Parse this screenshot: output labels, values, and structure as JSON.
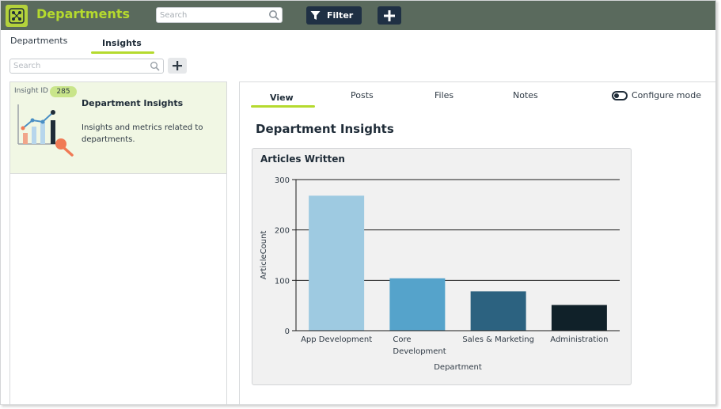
{
  "app": {
    "title": "Departments",
    "logo_icon": "network-grid-icon",
    "brand_color": "#b5da2e",
    "topbar_color": "#5a6a5d"
  },
  "topbar": {
    "search_placeholder": "Search",
    "filter_label": "Filter",
    "add_icon": "plus-icon"
  },
  "tabs": [
    {
      "label": "Departments",
      "active": false
    },
    {
      "label": "Insights",
      "active": true
    }
  ],
  "list": {
    "search_placeholder": "Search",
    "items": [
      {
        "id_label": "Insight ID",
        "id_value": "285",
        "title": "Department Insights",
        "description": "Insights and metrics related to departments.",
        "icon": "analytics-chart-icon",
        "selected": true
      }
    ]
  },
  "detail": {
    "tabs": [
      {
        "label": "View",
        "active": true
      },
      {
        "label": "Posts",
        "active": false
      },
      {
        "label": "Files",
        "active": false
      },
      {
        "label": "Notes",
        "active": false
      }
    ],
    "configure_label": "Configure mode",
    "configure_on": false,
    "title": "Department Insights"
  },
  "chart_data": {
    "type": "bar",
    "title": "Articles Written",
    "xlabel": "Department",
    "ylabel": "ArticleCount",
    "categories": [
      "App Development",
      "Core Development",
      "Sales & Marketing",
      "Administration"
    ],
    "category_lines": [
      [
        "App Development"
      ],
      [
        "Core",
        "Development"
      ],
      [
        "Sales & Marketing"
      ],
      [
        "Administration"
      ]
    ],
    "values": [
      268,
      104,
      78,
      51
    ],
    "colors": [
      "#9ecae1",
      "#55a3cb",
      "#2c6280",
      "#102129"
    ],
    "ylim": [
      0,
      300
    ],
    "yticks": [
      0,
      100,
      200,
      300
    ],
    "grid": true,
    "legend": "none"
  }
}
